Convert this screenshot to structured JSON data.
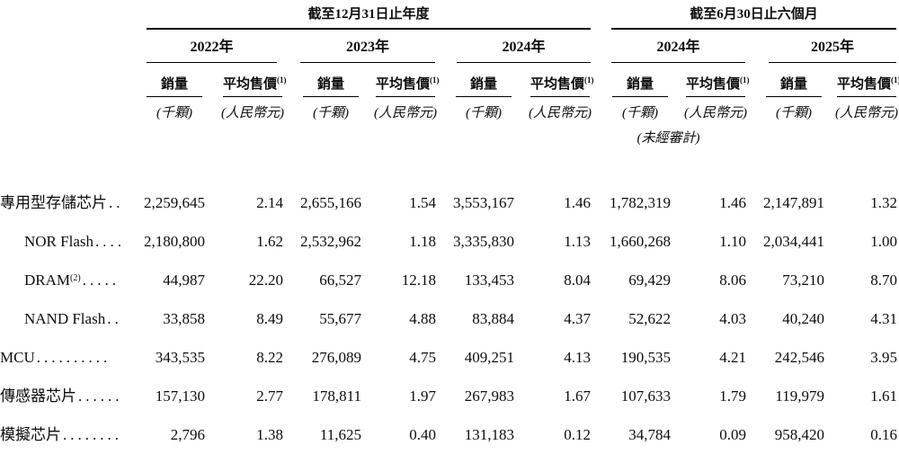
{
  "table": {
    "groups": [
      {
        "title": "截至12月31日止年度",
        "years": [
          "2022年",
          "2023年",
          "2024年"
        ]
      },
      {
        "title": "截至6月30日止六個月",
        "years": [
          "2024年",
          "2025年"
        ]
      }
    ],
    "col_headers": {
      "volume": "銷量",
      "asp": "平均售價",
      "asp_sup": "(1)"
    },
    "units": {
      "volume": "(千顆)",
      "asp": "(人民幣元)"
    },
    "unaudited_note": "(未經審計)",
    "rows": [
      {
        "label": "專用型存儲芯片",
        "sup": "",
        "leader": " ..",
        "indent": false,
        "values": [
          "2,259,645",
          "2.14",
          "2,655,166",
          "1.54",
          "3,553,167",
          "1.46",
          "1,782,319",
          "1.46",
          "2,147,891",
          "1.32"
        ]
      },
      {
        "label": "NOR Flash",
        "sup": "",
        "leader": "....",
        "indent": true,
        "values": [
          "2,180,800",
          "1.62",
          "2,532,962",
          "1.18",
          "3,335,830",
          "1.13",
          "1,660,268",
          "1.10",
          "2,034,441",
          "1.00"
        ]
      },
      {
        "label": "DRAM",
        "sup": "(2)",
        "leader": " .....",
        "indent": true,
        "values": [
          "44,987",
          "22.20",
          "66,527",
          "12.18",
          "133,453",
          "8.04",
          "69,429",
          "8.06",
          "73,210",
          "8.70"
        ]
      },
      {
        "label": "NAND Flash",
        "sup": "",
        "leader": " ..",
        "indent": true,
        "values": [
          "33,858",
          "8.49",
          "55,677",
          "4.88",
          "83,884",
          "4.37",
          "52,622",
          "4.03",
          "40,240",
          "4.31"
        ]
      },
      {
        "label": "MCU",
        "sup": "",
        "leader": "..........",
        "indent": false,
        "values": [
          "343,535",
          "8.22",
          "276,089",
          "4.75",
          "409,251",
          "4.13",
          "190,535",
          "4.21",
          "242,546",
          "3.95"
        ]
      },
      {
        "label": "傳感器芯片",
        "sup": "",
        "leader": "......",
        "indent": false,
        "values": [
          "157,130",
          "2.77",
          "178,811",
          "1.97",
          "267,983",
          "1.67",
          "107,633",
          "1.79",
          "119,979",
          "1.61"
        ]
      },
      {
        "label": "模擬芯片",
        "sup": "",
        "leader": "........",
        "indent": false,
        "values": [
          "2,796",
          "1.38",
          "11,625",
          "0.40",
          "131,183",
          "0.12",
          "34,784",
          "0.09",
          "958,420",
          "0.16"
        ]
      }
    ]
  }
}
